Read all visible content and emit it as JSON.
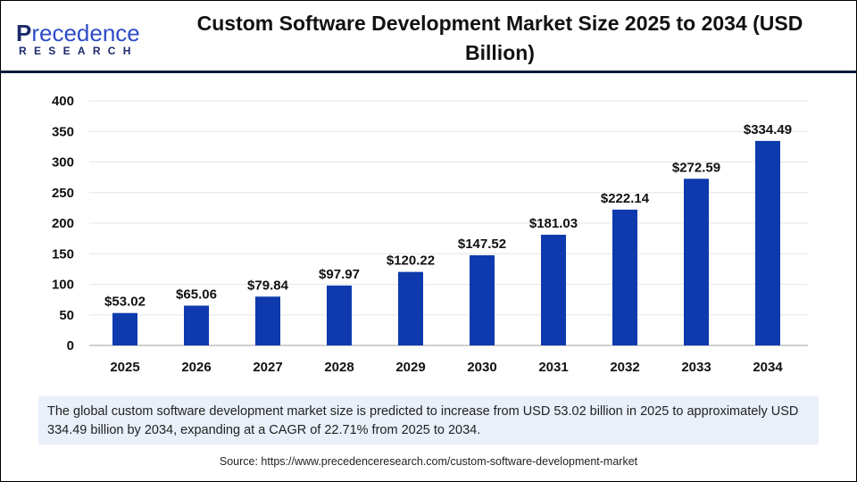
{
  "logo": {
    "line1_initial": "P",
    "line1_rest": "recedence",
    "line2": "RESEARCH"
  },
  "title": "Custom Software Development Market Size 2025 to 2034 (USD Billion)",
  "colors": {
    "bar": "#0e3aad",
    "header_rule": "#0f1a3d",
    "note_bg": "#e9f0fa"
  },
  "chart_data": {
    "type": "bar",
    "title": "Custom Software Development Market Size 2025 to 2034 (USD Billion)",
    "categories": [
      "2025",
      "2026",
      "2027",
      "2028",
      "2029",
      "2030",
      "2031",
      "2032",
      "2033",
      "2034"
    ],
    "values": [
      53.02,
      65.06,
      79.84,
      97.97,
      120.22,
      147.52,
      181.03,
      222.14,
      272.59,
      334.49
    ],
    "data_labels": [
      "$53.02",
      "$65.06",
      "$79.84",
      "$97.97",
      "$120.22",
      "$147.52",
      "$181.03",
      "$222.14",
      "$272.59",
      "$334.49"
    ],
    "yticks": [
      "0",
      "50",
      "100",
      "150",
      "200",
      "250",
      "300",
      "350",
      "400"
    ],
    "ylim": [
      0,
      400
    ],
    "grid": true,
    "xlabel": "",
    "ylabel": ""
  },
  "note": "The global custom software development market size is predicted to increase from USD 53.02 billion in 2025 to approximately USD 334.49 billion by 2034, expanding at a CAGR of 22.71% from 2025 to 2034.",
  "source": "Source: https://www.precedenceresearch.com/custom-software-development-market"
}
